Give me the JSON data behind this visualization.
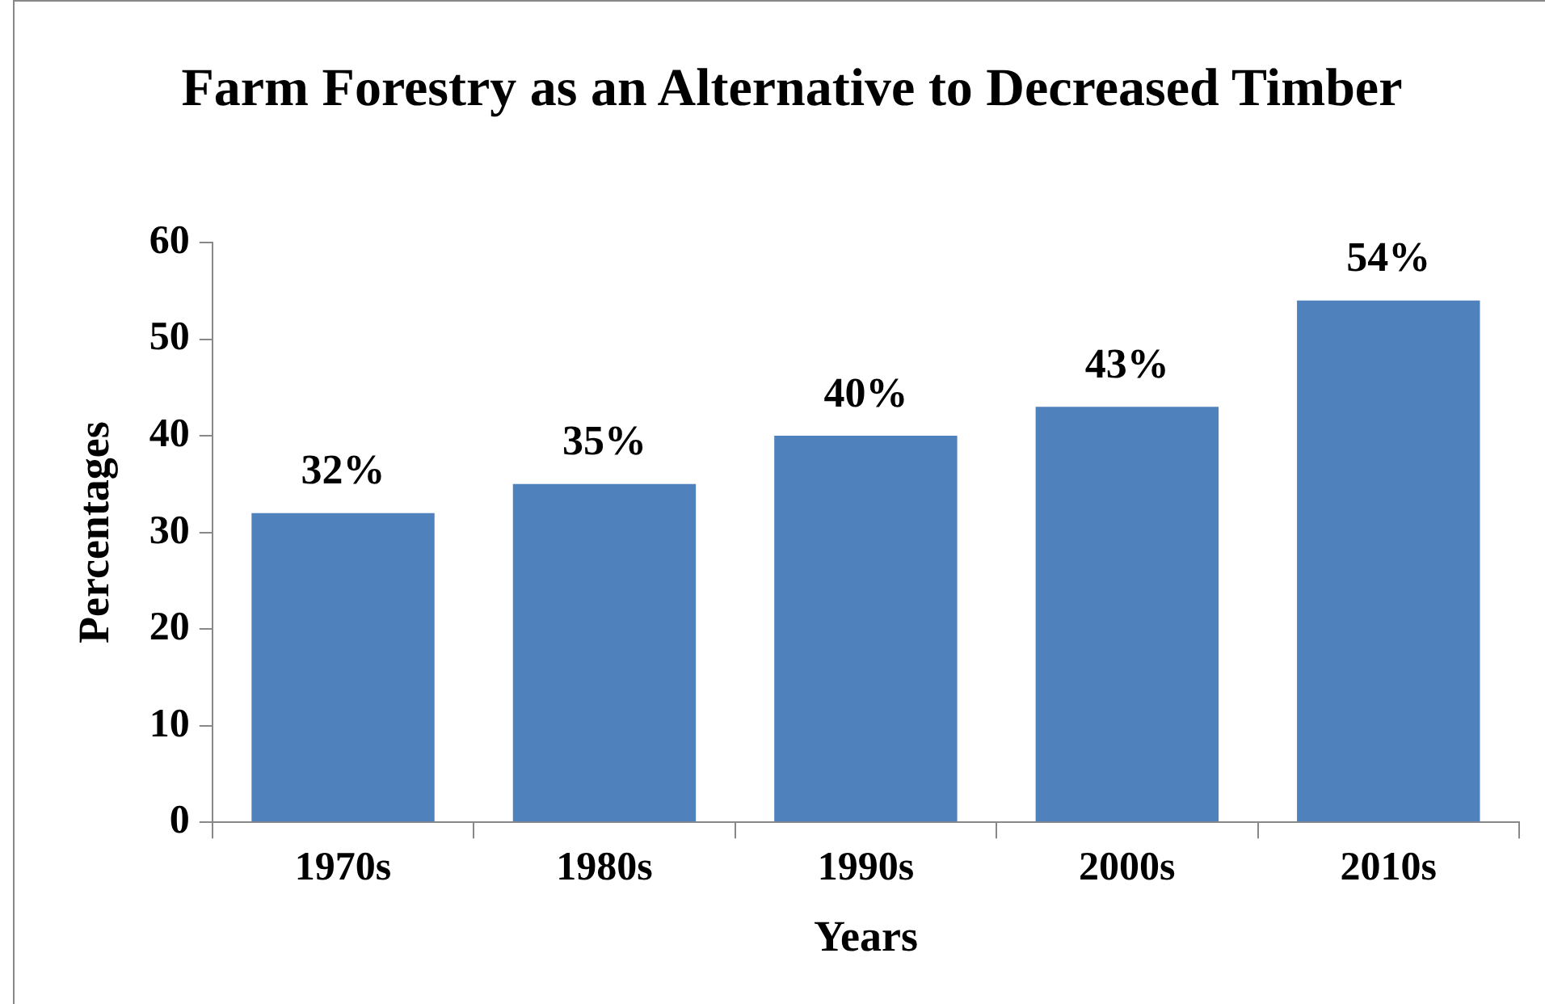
{
  "chart_data": {
    "type": "bar",
    "title": "Farm Forestry as an Alternative to Decreased Timber",
    "xlabel": "Years",
    "ylabel": "Percentages",
    "categories": [
      "1970s",
      "1980s",
      "1990s",
      "2000s",
      "2010s"
    ],
    "values": [
      32,
      35,
      40,
      43,
      54
    ],
    "value_labels": [
      "32%",
      "35%",
      "40%",
      "43%",
      "54%"
    ],
    "color": "#4f81bd",
    "ylim": [
      0,
      60
    ],
    "yticks": [
      0,
      10,
      20,
      30,
      40,
      50,
      60
    ],
    "grid": false,
    "legend": false
  }
}
